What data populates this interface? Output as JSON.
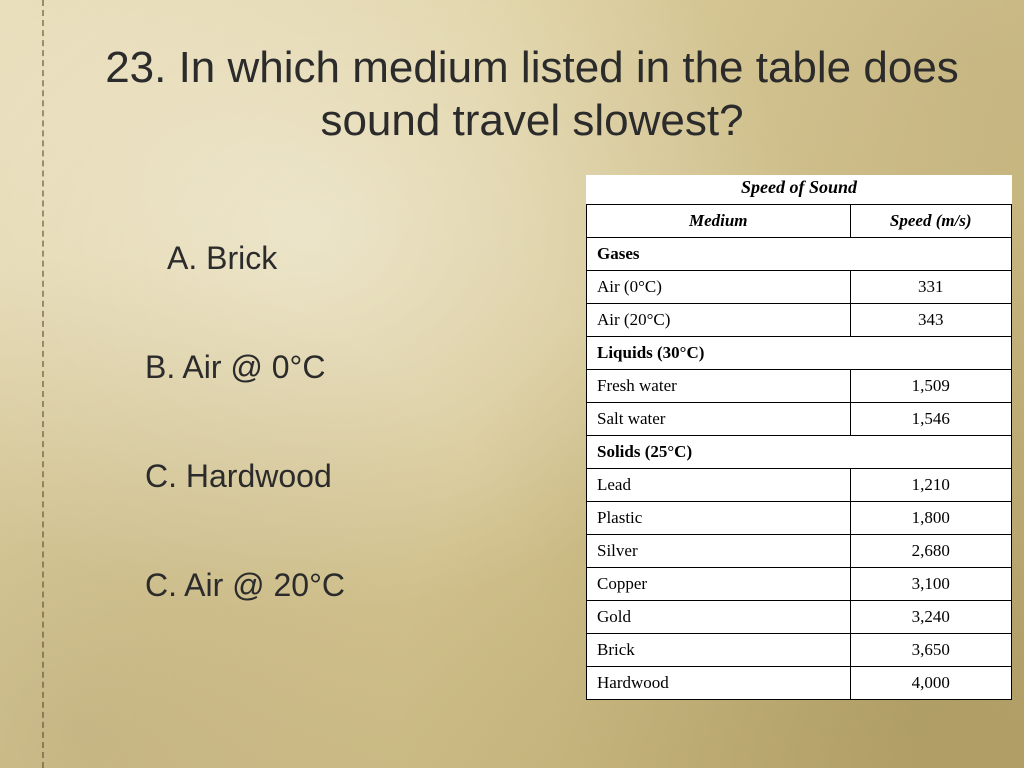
{
  "slide": {
    "background_colors": [
      "#e8dcb8",
      "#ddcf9e",
      "#d4c48f",
      "#c8b77d",
      "#beac6f"
    ],
    "stitch_color": "rgba(90,75,45,0.55)",
    "text_color": "#2b2b2b"
  },
  "question": {
    "text": "23. In which medium listed in the table does sound travel slowest?",
    "fontsize": 44
  },
  "options": [
    {
      "label": "A. Brick",
      "indent": true
    },
    {
      "label": "B. Air @ 0°C",
      "indent": false
    },
    {
      "label": "C. Hardwood",
      "indent": false
    },
    {
      "label": "C. Air @ 20°C",
      "indent": false
    }
  ],
  "table": {
    "type": "table",
    "caption": "Speed of Sound",
    "caption_fontsize": 18,
    "cell_fontsize": 17,
    "font_family": "Times New Roman",
    "background_color": "#ffffff",
    "border_color": "#000000",
    "columns": [
      {
        "header": "Medium",
        "width_pct": 62,
        "align_data": "left"
      },
      {
        "header": "Speed (m/s)",
        "width_pct": 38,
        "align_data": "center"
      }
    ],
    "sections": [
      {
        "title": "Gases",
        "rows": [
          {
            "medium": "Air (0°C)",
            "speed": "331"
          },
          {
            "medium": "Air (20°C)",
            "speed": "343"
          }
        ]
      },
      {
        "title": "Liquids (30°C)",
        "rows": [
          {
            "medium": "Fresh water",
            "speed": "1,509"
          },
          {
            "medium": "Salt water",
            "speed": "1,546"
          }
        ]
      },
      {
        "title": "Solids (25°C)",
        "rows": [
          {
            "medium": "Lead",
            "speed": "1,210"
          },
          {
            "medium": "Plastic",
            "speed": "1,800"
          },
          {
            "medium": "Silver",
            "speed": "2,680"
          },
          {
            "medium": "Copper",
            "speed": "3,100"
          },
          {
            "medium": "Gold",
            "speed": "3,240"
          },
          {
            "medium": "Brick",
            "speed": "3,650"
          },
          {
            "medium": "Hardwood",
            "speed": "4,000"
          }
        ]
      }
    ]
  }
}
